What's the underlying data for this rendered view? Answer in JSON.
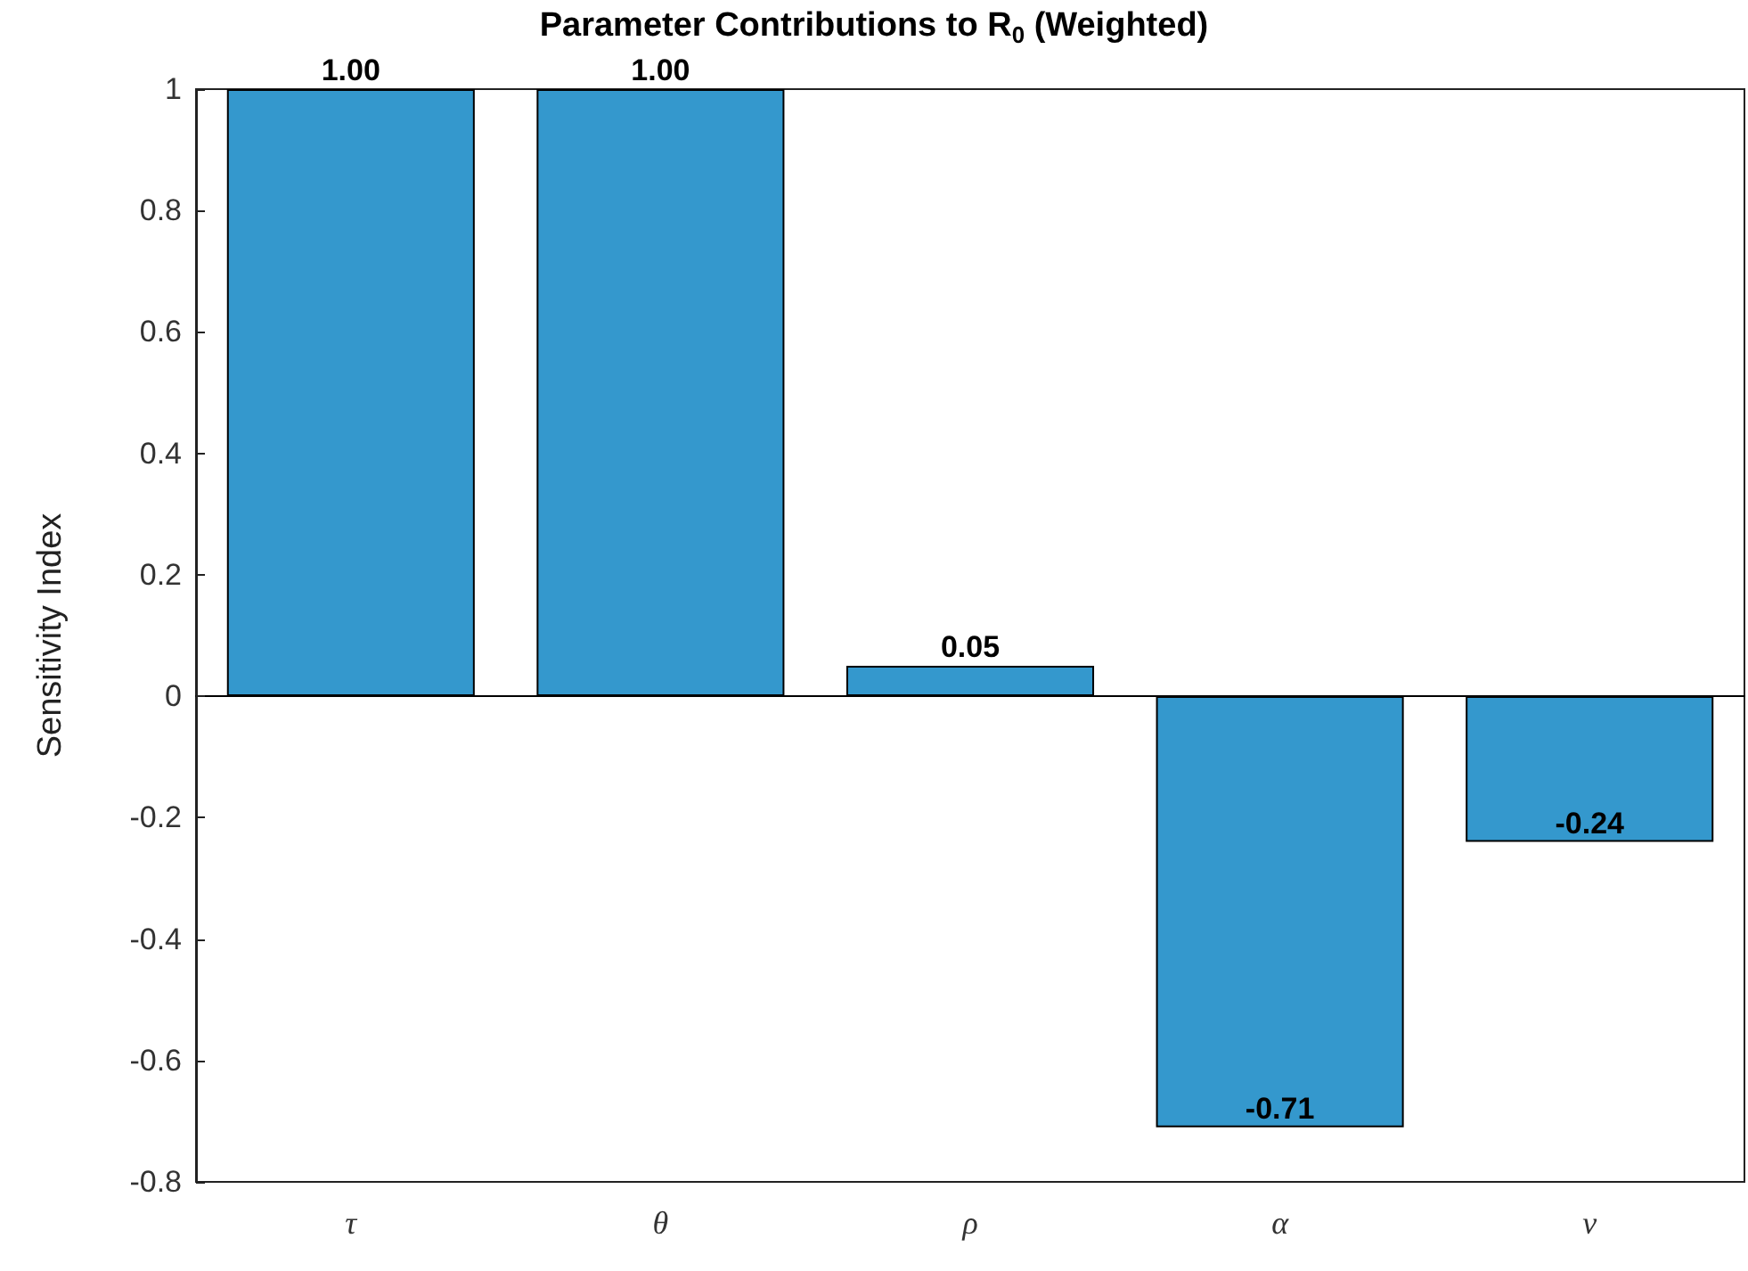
{
  "chart_data": {
    "type": "bar",
    "title": "Parameter Contributions to R$_{0}$ (Weighted)",
    "ylabel": "Sensitivity Index",
    "categories": [
      "τ",
      "θ",
      "ρ",
      "α",
      "ν"
    ],
    "values": [
      1.0,
      1.0,
      0.05,
      -0.71,
      -0.24
    ],
    "value_labels": [
      "1.00",
      "1.00",
      "0.05",
      "-0.71",
      "-0.24"
    ],
    "color": "#3498cd",
    "ylim": [
      -0.8,
      1
    ],
    "yticks": [
      -0.8,
      -0.6,
      -0.4,
      -0.2,
      0,
      0.2,
      0.4,
      0.6,
      0.8,
      1
    ]
  }
}
